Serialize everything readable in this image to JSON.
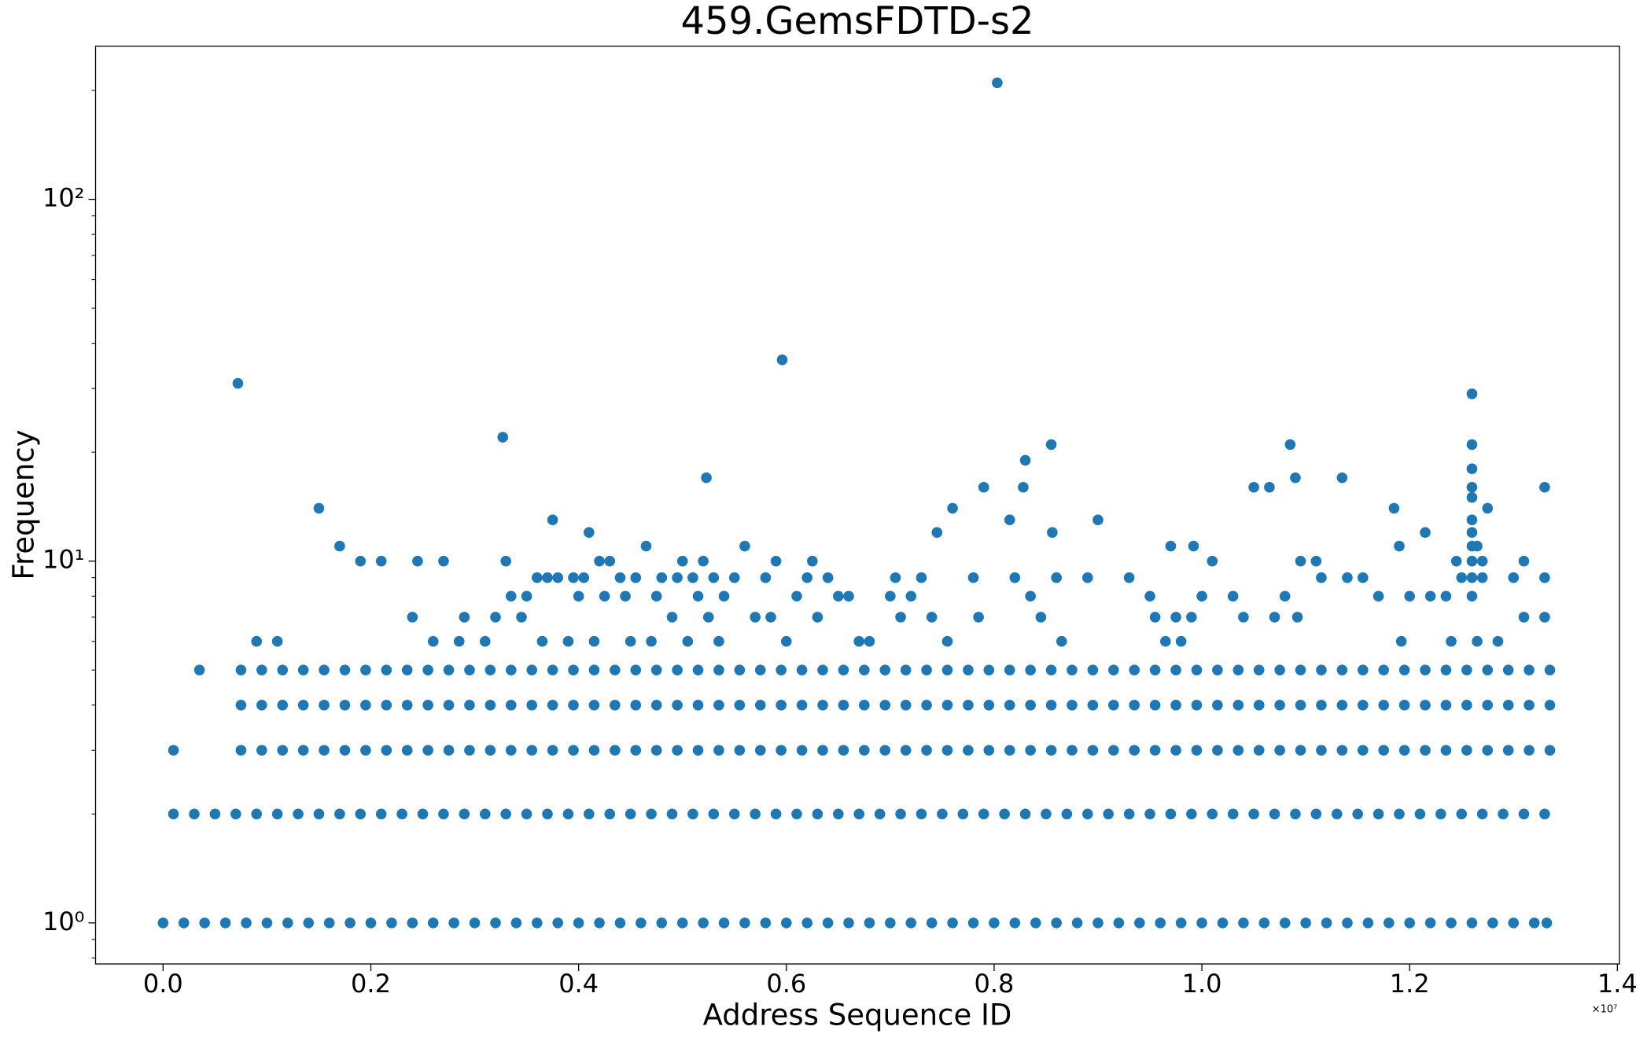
{
  "chart_data": {
    "type": "scatter",
    "title": "459.GemsFDTD-s2",
    "x_label": "Address Sequence ID",
    "y_label": "Frequency",
    "x_offset_label": "×10⁷",
    "color": "#1f77b4",
    "y_scale": "log",
    "grid": false,
    "xlim": [
      -0.065,
      1.402
    ],
    "ylim": [
      0.77,
      265
    ],
    "xticks": [
      {
        "value": 0,
        "label": "0.0"
      },
      0.2,
      0.4,
      0.6,
      0.8,
      {
        "value": 1,
        "label": "1.0"
      },
      1.2,
      1.4
    ],
    "yticks": [
      {
        "value": 1,
        "label": "10⁰"
      },
      {
        "value": 10,
        "label": "10¹"
      },
      {
        "value": 100,
        "label": "10²"
      }
    ],
    "yminorticks": [
      0.8,
      0.9,
      2,
      3,
      4,
      5,
      6,
      7,
      8,
      9,
      20,
      30,
      40,
      50,
      60,
      70,
      80,
      90,
      200
    ],
    "series": [
      {
        "x": [
          0,
          0.02,
          0.04,
          0.06,
          0.08,
          0.1,
          0.12,
          0.14,
          0.16,
          0.18,
          0.2,
          0.22,
          0.24,
          0.26,
          0.28,
          0.3,
          0.32,
          0.34,
          0.36,
          0.38,
          0.4,
          0.42,
          0.44,
          0.46,
          0.48,
          0.5,
          0.52,
          0.54,
          0.56,
          0.58,
          0.6,
          0.62,
          0.64,
          0.66,
          0.68,
          0.7,
          0.72,
          0.74,
          0.76,
          0.78,
          0.8,
          0.82,
          0.84,
          0.86,
          0.88,
          0.9,
          0.92,
          0.94,
          0.96,
          0.98,
          1,
          1.02,
          1.04,
          1.06,
          1.08,
          1.1,
          1.12,
          1.14,
          1.16,
          1.18,
          1.2,
          1.22,
          1.24,
          1.26,
          1.28,
          1.3,
          1.32,
          1.332
        ],
        "values": [
          1,
          1,
          1,
          1,
          1,
          1,
          1,
          1,
          1,
          1,
          1,
          1,
          1,
          1,
          1,
          1,
          1,
          1,
          1,
          1,
          1,
          1,
          1,
          1,
          1,
          1,
          1,
          1,
          1,
          1,
          1,
          1,
          1,
          1,
          1,
          1,
          1,
          1,
          1,
          1,
          1,
          1,
          1,
          1,
          1,
          1,
          1,
          1,
          1,
          1,
          1,
          1,
          1,
          1,
          1,
          1,
          1,
          1,
          1,
          1,
          1,
          1,
          1,
          1,
          1,
          1,
          1,
          1
        ]
      },
      {
        "x": [
          0.01,
          0.03,
          0.05,
          0.07,
          0.09,
          0.11,
          0.13,
          0.15,
          0.17,
          0.19,
          0.21,
          0.23,
          0.25,
          0.27,
          0.29,
          0.31,
          0.33,
          0.35,
          0.37,
          0.39,
          0.41,
          0.43,
          0.45,
          0.47,
          0.49,
          0.51,
          0.53,
          0.55,
          0.57,
          0.59,
          0.61,
          0.63,
          0.65,
          0.67,
          0.69,
          0.71,
          0.73,
          0.75,
          0.77,
          0.79,
          0.81,
          0.83,
          0.85,
          0.87,
          0.89,
          0.91,
          0.93,
          0.95,
          0.97,
          0.99,
          1.01,
          1.03,
          1.05,
          1.07,
          1.09,
          1.11,
          1.13,
          1.15,
          1.17,
          1.19,
          1.21,
          1.23,
          1.25,
          1.27,
          1.29,
          1.31,
          1.33
        ],
        "values": [
          2,
          2,
          2,
          2,
          2,
          2,
          2,
          2,
          2,
          2,
          2,
          2,
          2,
          2,
          2,
          2,
          2,
          2,
          2,
          2,
          2,
          2,
          2,
          2,
          2,
          2,
          2,
          2,
          2,
          2,
          2,
          2,
          2,
          2,
          2,
          2,
          2,
          2,
          2,
          2,
          2,
          2,
          2,
          2,
          2,
          2,
          2,
          2,
          2,
          2,
          2,
          2,
          2,
          2,
          2,
          2,
          2,
          2,
          2,
          2,
          2,
          2,
          2,
          2,
          2,
          2,
          2
        ]
      },
      {
        "x": [
          0.075,
          0.095,
          0.115,
          0.135,
          0.155,
          0.175,
          0.195,
          0.215,
          0.235,
          0.255,
          0.275,
          0.295,
          0.315,
          0.335,
          0.355,
          0.375,
          0.395,
          0.415,
          0.435,
          0.455,
          0.475,
          0.495,
          0.515,
          0.535,
          0.555,
          0.575,
          0.595,
          0.615,
          0.635,
          0.655,
          0.675,
          0.695,
          0.715,
          0.735,
          0.755,
          0.775,
          0.795,
          0.815,
          0.835,
          0.855,
          0.875,
          0.895,
          0.915,
          0.935,
          0.955,
          0.975,
          0.995,
          1.015,
          1.035,
          1.055,
          1.075,
          1.095,
          1.115,
          1.135,
          1.155,
          1.175,
          1.195,
          1.215,
          1.235,
          1.255,
          1.275,
          1.295,
          1.315,
          1.335
        ],
        "values": [
          3,
          3,
          3,
          3,
          3,
          3,
          3,
          3,
          3,
          3,
          3,
          3,
          3,
          3,
          3,
          3,
          3,
          3,
          3,
          3,
          3,
          3,
          3,
          3,
          3,
          3,
          3,
          3,
          3,
          3,
          3,
          3,
          3,
          3,
          3,
          3,
          3,
          3,
          3,
          3,
          3,
          3,
          3,
          3,
          3,
          3,
          3,
          3,
          3,
          3,
          3,
          3,
          3,
          3,
          3,
          3,
          3,
          3,
          3,
          3,
          3,
          3,
          3,
          3
        ]
      },
      {
        "x": [
          0.075,
          0.095,
          0.115,
          0.135,
          0.155,
          0.175,
          0.195,
          0.215,
          0.235,
          0.255,
          0.275,
          0.295,
          0.315,
          0.335,
          0.355,
          0.375,
          0.395,
          0.415,
          0.435,
          0.455,
          0.475,
          0.495,
          0.515,
          0.535,
          0.555,
          0.575,
          0.595,
          0.615,
          0.635,
          0.655,
          0.675,
          0.695,
          0.715,
          0.735,
          0.755,
          0.775,
          0.795,
          0.815,
          0.835,
          0.855,
          0.875,
          0.895,
          0.915,
          0.935,
          0.955,
          0.975,
          0.995,
          1.015,
          1.035,
          1.055,
          1.075,
          1.095,
          1.115,
          1.135,
          1.155,
          1.175,
          1.195,
          1.215,
          1.235,
          1.255,
          1.275,
          1.295,
          1.315,
          1.335
        ],
        "values": [
          4,
          4,
          4,
          4,
          4,
          4,
          4,
          4,
          4,
          4,
          4,
          4,
          4,
          4,
          4,
          4,
          4,
          4,
          4,
          4,
          4,
          4,
          4,
          4,
          4,
          4,
          4,
          4,
          4,
          4,
          4,
          4,
          4,
          4,
          4,
          4,
          4,
          4,
          4,
          4,
          4,
          4,
          4,
          4,
          4,
          4,
          4,
          4,
          4,
          4,
          4,
          4,
          4,
          4,
          4,
          4,
          4,
          4,
          4,
          4,
          4,
          4,
          4,
          4
        ]
      },
      {
        "x": [
          0.075,
          0.095,
          0.115,
          0.135,
          0.155,
          0.175,
          0.195,
          0.215,
          0.235,
          0.255,
          0.275,
          0.295,
          0.315,
          0.335,
          0.355,
          0.375,
          0.395,
          0.415,
          0.435,
          0.455,
          0.475,
          0.495,
          0.515,
          0.535,
          0.555,
          0.575,
          0.595,
          0.615,
          0.635,
          0.655,
          0.675,
          0.695,
          0.715,
          0.735,
          0.755,
          0.775,
          0.795,
          0.815,
          0.835,
          0.855,
          0.875,
          0.895,
          0.915,
          0.935,
          0.955,
          0.975,
          0.995,
          1.015,
          1.035,
          1.055,
          1.075,
          1.095,
          1.115,
          1.135,
          1.155,
          1.175,
          1.195,
          1.215,
          1.235,
          1.255,
          1.275,
          1.295,
          1.315,
          1.335
        ],
        "values": [
          5,
          5,
          5,
          5,
          5,
          5,
          5,
          5,
          5,
          5,
          5,
          5,
          5,
          5,
          5,
          5,
          5,
          5,
          5,
          5,
          5,
          5,
          5,
          5,
          5,
          5,
          5,
          5,
          5,
          5,
          5,
          5,
          5,
          5,
          5,
          5,
          5,
          5,
          5,
          5,
          5,
          5,
          5,
          5,
          5,
          5,
          5,
          5,
          5,
          5,
          5,
          5,
          5,
          5,
          5,
          5,
          5,
          5,
          5,
          5,
          5,
          5,
          5,
          5
        ]
      },
      {
        "x": [
          0.01,
          0.035,
          0.072,
          0.09,
          0.11,
          0.15,
          0.17,
          0.19,
          0.21,
          0.24,
          0.245,
          0.26,
          0.27,
          0.285,
          0.29,
          0.31,
          0.32,
          0.327,
          0.33,
          0.335,
          0.345,
          0.35,
          0.36,
          0.365,
          0.37,
          0.375,
          0.38,
          0.39,
          0.395,
          0.4,
          0.405,
          0.41,
          0.415,
          0.42,
          0.425,
          0.43,
          0.44,
          0.445,
          0.45,
          0.455,
          0.465,
          0.47,
          0.475,
          0.48,
          0.49,
          0.495,
          0.5,
          0.505,
          0.51,
          0.515,
          0.52,
          0.523,
          0.525,
          0.53,
          0.535,
          0.54,
          0.55,
          0.56,
          0.57,
          0.58,
          0.585,
          0.59,
          0.596,
          0.6,
          0.61,
          0.62,
          0.625,
          0.63,
          0.64,
          0.65,
          0.66,
          0.67,
          0.68,
          0.7,
          0.705,
          0.71,
          0.72,
          0.73,
          0.74,
          0.745,
          0.755,
          0.76,
          0.78,
          0.785,
          0.79,
          0.803,
          0.815,
          0.82,
          0.828,
          0.83,
          0.835,
          0.845,
          0.855,
          0.856,
          0.86,
          0.865,
          0.89,
          0.9,
          0.93,
          0.95,
          0.955,
          0.965,
          0.97,
          0.975,
          0.98,
          0.99,
          0.992,
          1,
          1.01,
          1.03,
          1.04,
          1.05,
          1.065,
          1.07,
          1.08,
          1.085,
          1.09,
          1.092,
          1.095,
          1.11,
          1.115,
          1.135,
          1.14,
          1.155,
          1.17,
          1.185,
          1.19,
          1.192,
          1.2,
          1.215,
          1.22,
          1.235,
          1.24,
          1.245,
          1.25,
          1.26,
          1.26,
          1.26,
          1.26,
          1.26,
          1.26,
          1.26,
          1.26,
          1.26,
          1.26,
          1.26,
          1.265,
          1.265,
          1.27,
          1.27,
          1.275,
          1.285,
          1.3,
          1.31,
          1.31,
          1.33,
          1.33,
          1.33
        ],
        "values": [
          3,
          5,
          31,
          6,
          6,
          14,
          11,
          10,
          10,
          7,
          10,
          6,
          10,
          6,
          7,
          6,
          7,
          22,
          10,
          8,
          7,
          8,
          9,
          6,
          9,
          13,
          9,
          6,
          9,
          8,
          9,
          12,
          6,
          10,
          8,
          10,
          9,
          8,
          6,
          9,
          11,
          6,
          8,
          9,
          7,
          9,
          10,
          6,
          9,
          8,
          10,
          17,
          7,
          9,
          6,
          8,
          9,
          11,
          7,
          9,
          7,
          10,
          36,
          6,
          8,
          9,
          10,
          7,
          9,
          8,
          8,
          6,
          6,
          8,
          9,
          7,
          8,
          9,
          7,
          12,
          6,
          14,
          9,
          7,
          16,
          210,
          13,
          9,
          16,
          19,
          8,
          7,
          21,
          12,
          9,
          6,
          9,
          13,
          9,
          8,
          7,
          6,
          11,
          7,
          6,
          7,
          11,
          8,
          10,
          8,
          7,
          16,
          16,
          7,
          8,
          21,
          17,
          7,
          10,
          10,
          9,
          17,
          9,
          9,
          8,
          14,
          11,
          6,
          8,
          12,
          8,
          8,
          6,
          10,
          9,
          29,
          21,
          18,
          16,
          15,
          13,
          12,
          11,
          10,
          9,
          8,
          6,
          11,
          10,
          9,
          14,
          6,
          9,
          10,
          7,
          16,
          9,
          7
        ]
      }
    ]
  }
}
